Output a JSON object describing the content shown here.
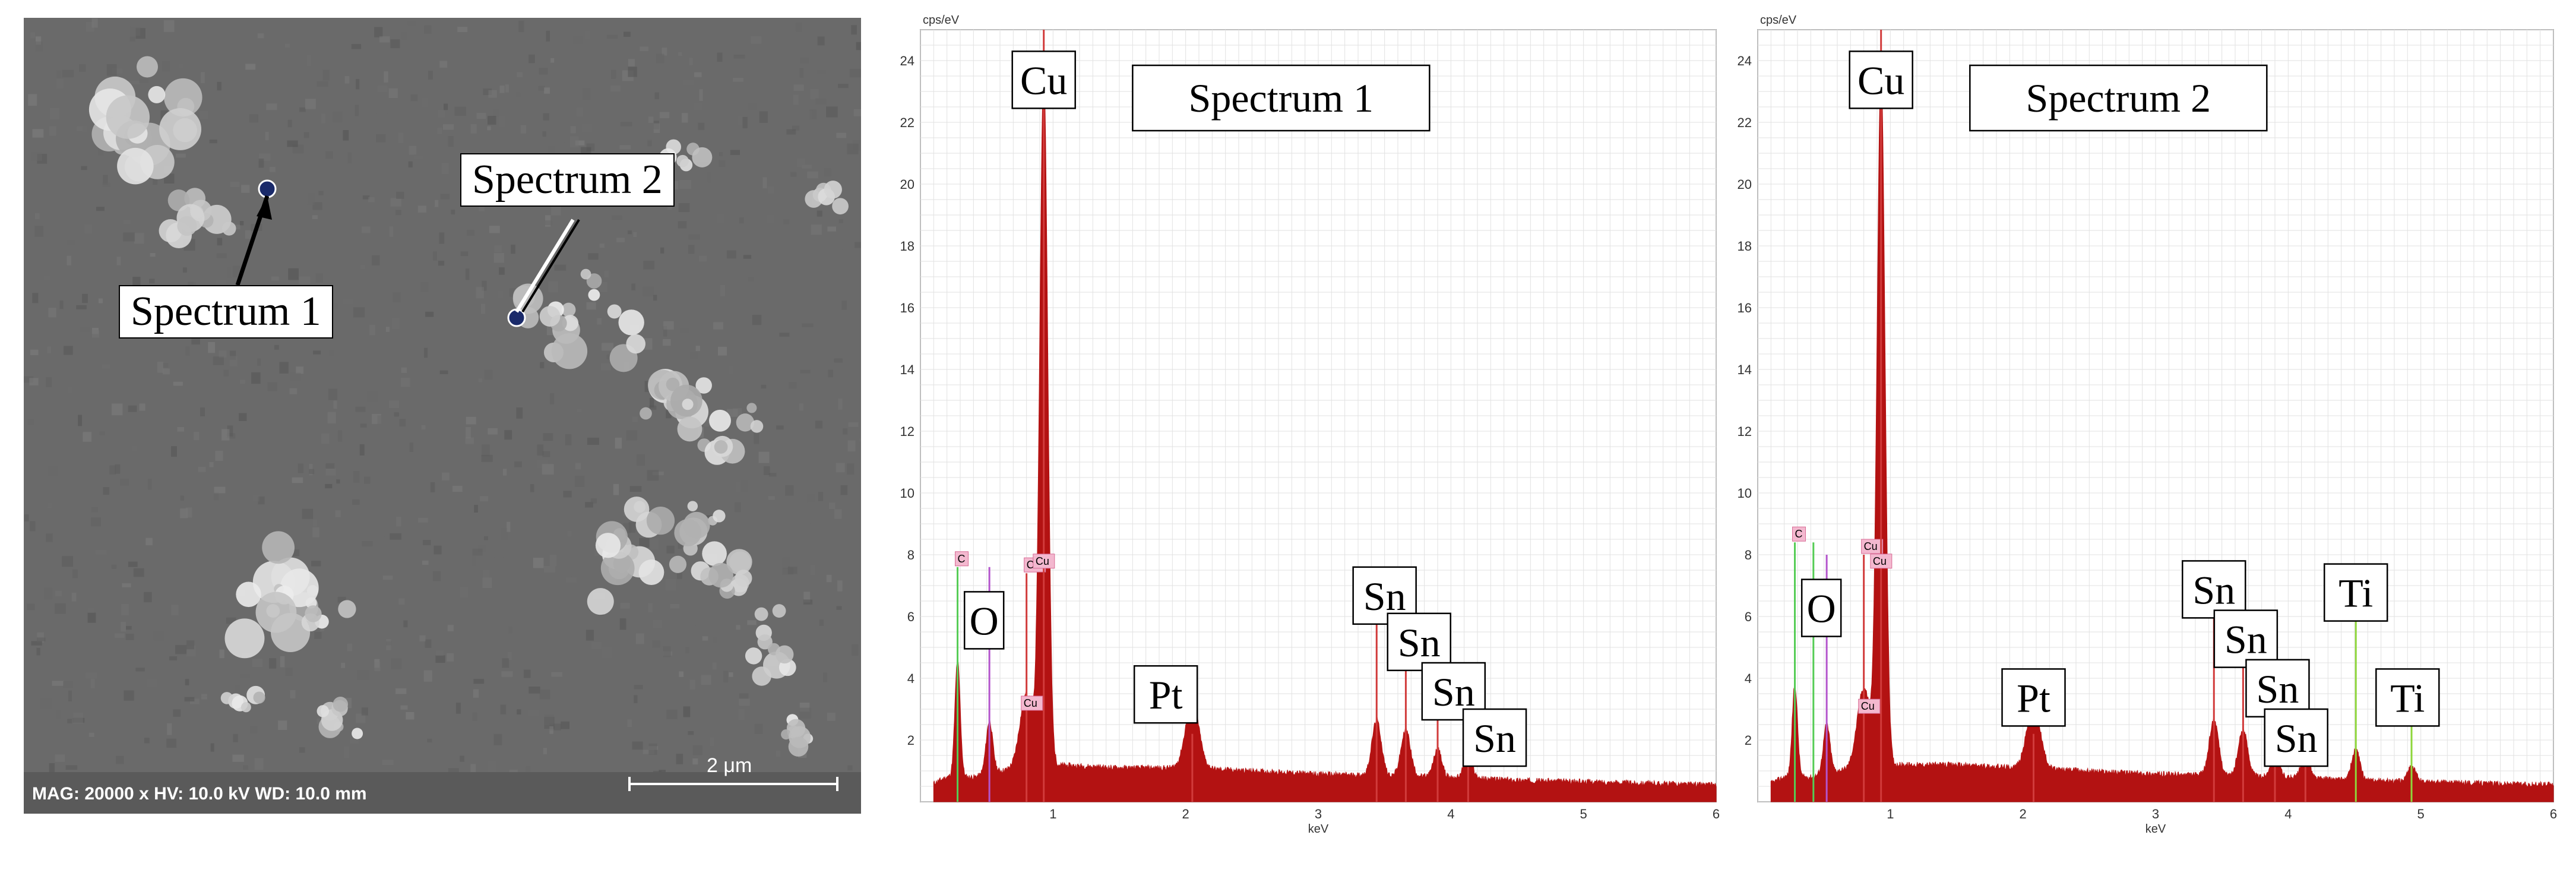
{
  "sem_image": {
    "info_text": "MAG: 20000 x   HV: 10.0 kV   WD: 10.0 mm",
    "scale_bar_label": "2 μm",
    "callouts": [
      "Spectrum 1",
      "Spectrum 2"
    ]
  },
  "chart_data": [
    {
      "type": "area",
      "title": "Spectrum 1",
      "xlabel": "keV",
      "ylabel": "cps/eV",
      "xlim": [
        0,
        6
      ],
      "ylim": [
        0,
        25
      ],
      "x_ticks": [
        1,
        2,
        3,
        4,
        5,
        6
      ],
      "y_ticks": [
        2,
        4,
        6,
        8,
        10,
        12,
        14,
        16,
        18,
        20,
        22,
        24
      ],
      "color": "#b31212",
      "baseline": [
        [
          0.1,
          0.6
        ],
        [
          0.2,
          0.8
        ],
        [
          0.4,
          0.8
        ],
        [
          0.6,
          1.0
        ],
        [
          1.0,
          1.2
        ],
        [
          1.5,
          1.1
        ],
        [
          2.0,
          1.1
        ],
        [
          2.5,
          1.0
        ],
        [
          3.0,
          0.9
        ],
        [
          3.5,
          0.85
        ],
        [
          4.0,
          0.8
        ],
        [
          4.5,
          0.7
        ],
        [
          5.0,
          0.65
        ],
        [
          5.5,
          0.6
        ],
        [
          6.0,
          0.55
        ]
      ],
      "peaks": [
        {
          "x": 0.28,
          "height": 3.8,
          "width": 0.02
        },
        {
          "x": 0.52,
          "height": 1.7,
          "width": 0.025
        },
        {
          "x": 0.8,
          "height": 2.4,
          "width": 0.05
        },
        {
          "x": 0.93,
          "height": 22.5,
          "width": 0.03
        },
        {
          "x": 2.05,
          "height": 2.2,
          "width": 0.05
        },
        {
          "x": 3.44,
          "height": 1.8,
          "width": 0.035
        },
        {
          "x": 3.66,
          "height": 1.5,
          "width": 0.035
        },
        {
          "x": 3.9,
          "height": 0.9,
          "width": 0.03
        },
        {
          "x": 4.13,
          "height": 0.8,
          "width": 0.03
        }
      ],
      "marker_lines": [
        {
          "x": 0.28,
          "top": 7.6,
          "color": "#55cc55",
          "tag": "C"
        },
        {
          "x": 0.52,
          "top": 7.6,
          "color": "#b355cc",
          "tag": ""
        },
        {
          "x": 0.8,
          "top": 7.4,
          "color": "#d13b3b",
          "tag": "Cu"
        },
        {
          "x": 0.93,
          "top": 25.0,
          "color": "#d13b3b",
          "tag": ""
        },
        {
          "x": 2.05,
          "top": 2.2,
          "color": "#d13b3b",
          "tag": ""
        },
        {
          "x": 3.44,
          "top": 6.9,
          "color": "#d13b3b",
          "tag": ""
        },
        {
          "x": 3.66,
          "top": 5.5,
          "color": "#d13b3b",
          "tag": ""
        },
        {
          "x": 3.9,
          "top": 3.6,
          "color": "#d13b3b",
          "tag": ""
        },
        {
          "x": 4.13,
          "top": 2.4,
          "color": "#d13b3b",
          "tag": ""
        }
      ],
      "small_tags": [
        {
          "x": 0.85,
          "y": 7.6,
          "text": "Cu"
        },
        {
          "x": 0.76,
          "y": 3.0,
          "text": "Cu"
        }
      ],
      "element_labels": [
        {
          "text": "Cu",
          "x": 0.93,
          "y": 24.3
        },
        {
          "text": "O",
          "x": 0.48,
          "y": 6.8
        },
        {
          "text": "Pt",
          "x": 1.85,
          "y": 4.4
        },
        {
          "text": "Sn",
          "x": 3.5,
          "y": 7.6
        },
        {
          "text": "Sn",
          "x": 3.76,
          "y": 6.1
        },
        {
          "text": "Sn",
          "x": 4.02,
          "y": 4.5
        },
        {
          "text": "Sn",
          "x": 4.33,
          "y": 3.0
        }
      ]
    },
    {
      "type": "area",
      "title": "Spectrum 2",
      "xlabel": "keV",
      "ylabel": "cps/eV",
      "xlim": [
        0,
        6
      ],
      "ylim": [
        0,
        25
      ],
      "x_ticks": [
        1,
        2,
        3,
        4,
        5,
        6
      ],
      "y_ticks": [
        2,
        4,
        6,
        8,
        10,
        12,
        14,
        16,
        18,
        20,
        22,
        24
      ],
      "color": "#b31212",
      "baseline": [
        [
          0.1,
          0.6
        ],
        [
          0.2,
          0.8
        ],
        [
          0.4,
          0.8
        ],
        [
          0.6,
          1.0
        ],
        [
          1.0,
          1.2
        ],
        [
          1.5,
          1.2
        ],
        [
          2.0,
          1.1
        ],
        [
          2.5,
          1.0
        ],
        [
          3.0,
          0.9
        ],
        [
          3.5,
          0.85
        ],
        [
          4.0,
          0.8
        ],
        [
          4.5,
          0.7
        ],
        [
          5.0,
          0.65
        ],
        [
          5.5,
          0.6
        ],
        [
          6.0,
          0.55
        ]
      ],
      "peaks": [
        {
          "x": 0.28,
          "height": 3.0,
          "width": 0.02
        },
        {
          "x": 0.52,
          "height": 1.6,
          "width": 0.025
        },
        {
          "x": 0.8,
          "height": 2.6,
          "width": 0.05
        },
        {
          "x": 0.93,
          "height": 22.5,
          "width": 0.03
        },
        {
          "x": 2.08,
          "height": 2.1,
          "width": 0.05
        },
        {
          "x": 3.44,
          "height": 1.8,
          "width": 0.035
        },
        {
          "x": 3.66,
          "height": 1.5,
          "width": 0.035
        },
        {
          "x": 3.9,
          "height": 0.9,
          "width": 0.03
        },
        {
          "x": 4.13,
          "height": 0.8,
          "width": 0.03
        },
        {
          "x": 4.51,
          "height": 1.0,
          "width": 0.03
        },
        {
          "x": 4.93,
          "height": 0.5,
          "width": 0.03
        }
      ],
      "marker_lines": [
        {
          "x": 0.28,
          "top": 8.4,
          "color": "#55cc55",
          "tag": "C"
        },
        {
          "x": 0.42,
          "top": 8.4,
          "color": "#55cc55",
          "tag": ""
        },
        {
          "x": 0.52,
          "top": 8.0,
          "color": "#b355cc",
          "tag": ""
        },
        {
          "x": 0.8,
          "top": 8.0,
          "color": "#d13b3b",
          "tag": "Cu"
        },
        {
          "x": 0.93,
          "top": 25.0,
          "color": "#d13b3b",
          "tag": ""
        },
        {
          "x": 2.08,
          "top": 2.2,
          "color": "#d13b3b",
          "tag": ""
        },
        {
          "x": 3.44,
          "top": 7.1,
          "color": "#d13b3b",
          "tag": ""
        },
        {
          "x": 3.66,
          "top": 5.5,
          "color": "#d13b3b",
          "tag": ""
        },
        {
          "x": 3.9,
          "top": 3.5,
          "color": "#d13b3b",
          "tag": ""
        },
        {
          "x": 4.13,
          "top": 2.4,
          "color": "#d13b3b",
          "tag": ""
        },
        {
          "x": 4.51,
          "top": 7.1,
          "color": "#8ed63b",
          "tag": ""
        },
        {
          "x": 4.93,
          "top": 3.3,
          "color": "#8ed63b",
          "tag": ""
        }
      ],
      "small_tags": [
        {
          "x": 0.85,
          "y": 7.6,
          "text": "Cu"
        },
        {
          "x": 0.76,
          "y": 2.9,
          "text": "Cu"
        }
      ],
      "element_labels": [
        {
          "text": "Cu",
          "x": 0.93,
          "y": 24.3
        },
        {
          "text": "O",
          "x": 0.48,
          "y": 7.2
        },
        {
          "text": "Pt",
          "x": 2.08,
          "y": 4.3
        },
        {
          "text": "Sn",
          "x": 3.44,
          "y": 7.8
        },
        {
          "text": "Sn",
          "x": 3.68,
          "y": 6.2
        },
        {
          "text": "Sn",
          "x": 3.92,
          "y": 4.6
        },
        {
          "text": "Sn",
          "x": 4.06,
          "y": 3.0
        },
        {
          "text": "Ti",
          "x": 4.51,
          "y": 7.7
        },
        {
          "text": "Ti",
          "x": 4.9,
          "y": 4.3
        }
      ]
    }
  ]
}
